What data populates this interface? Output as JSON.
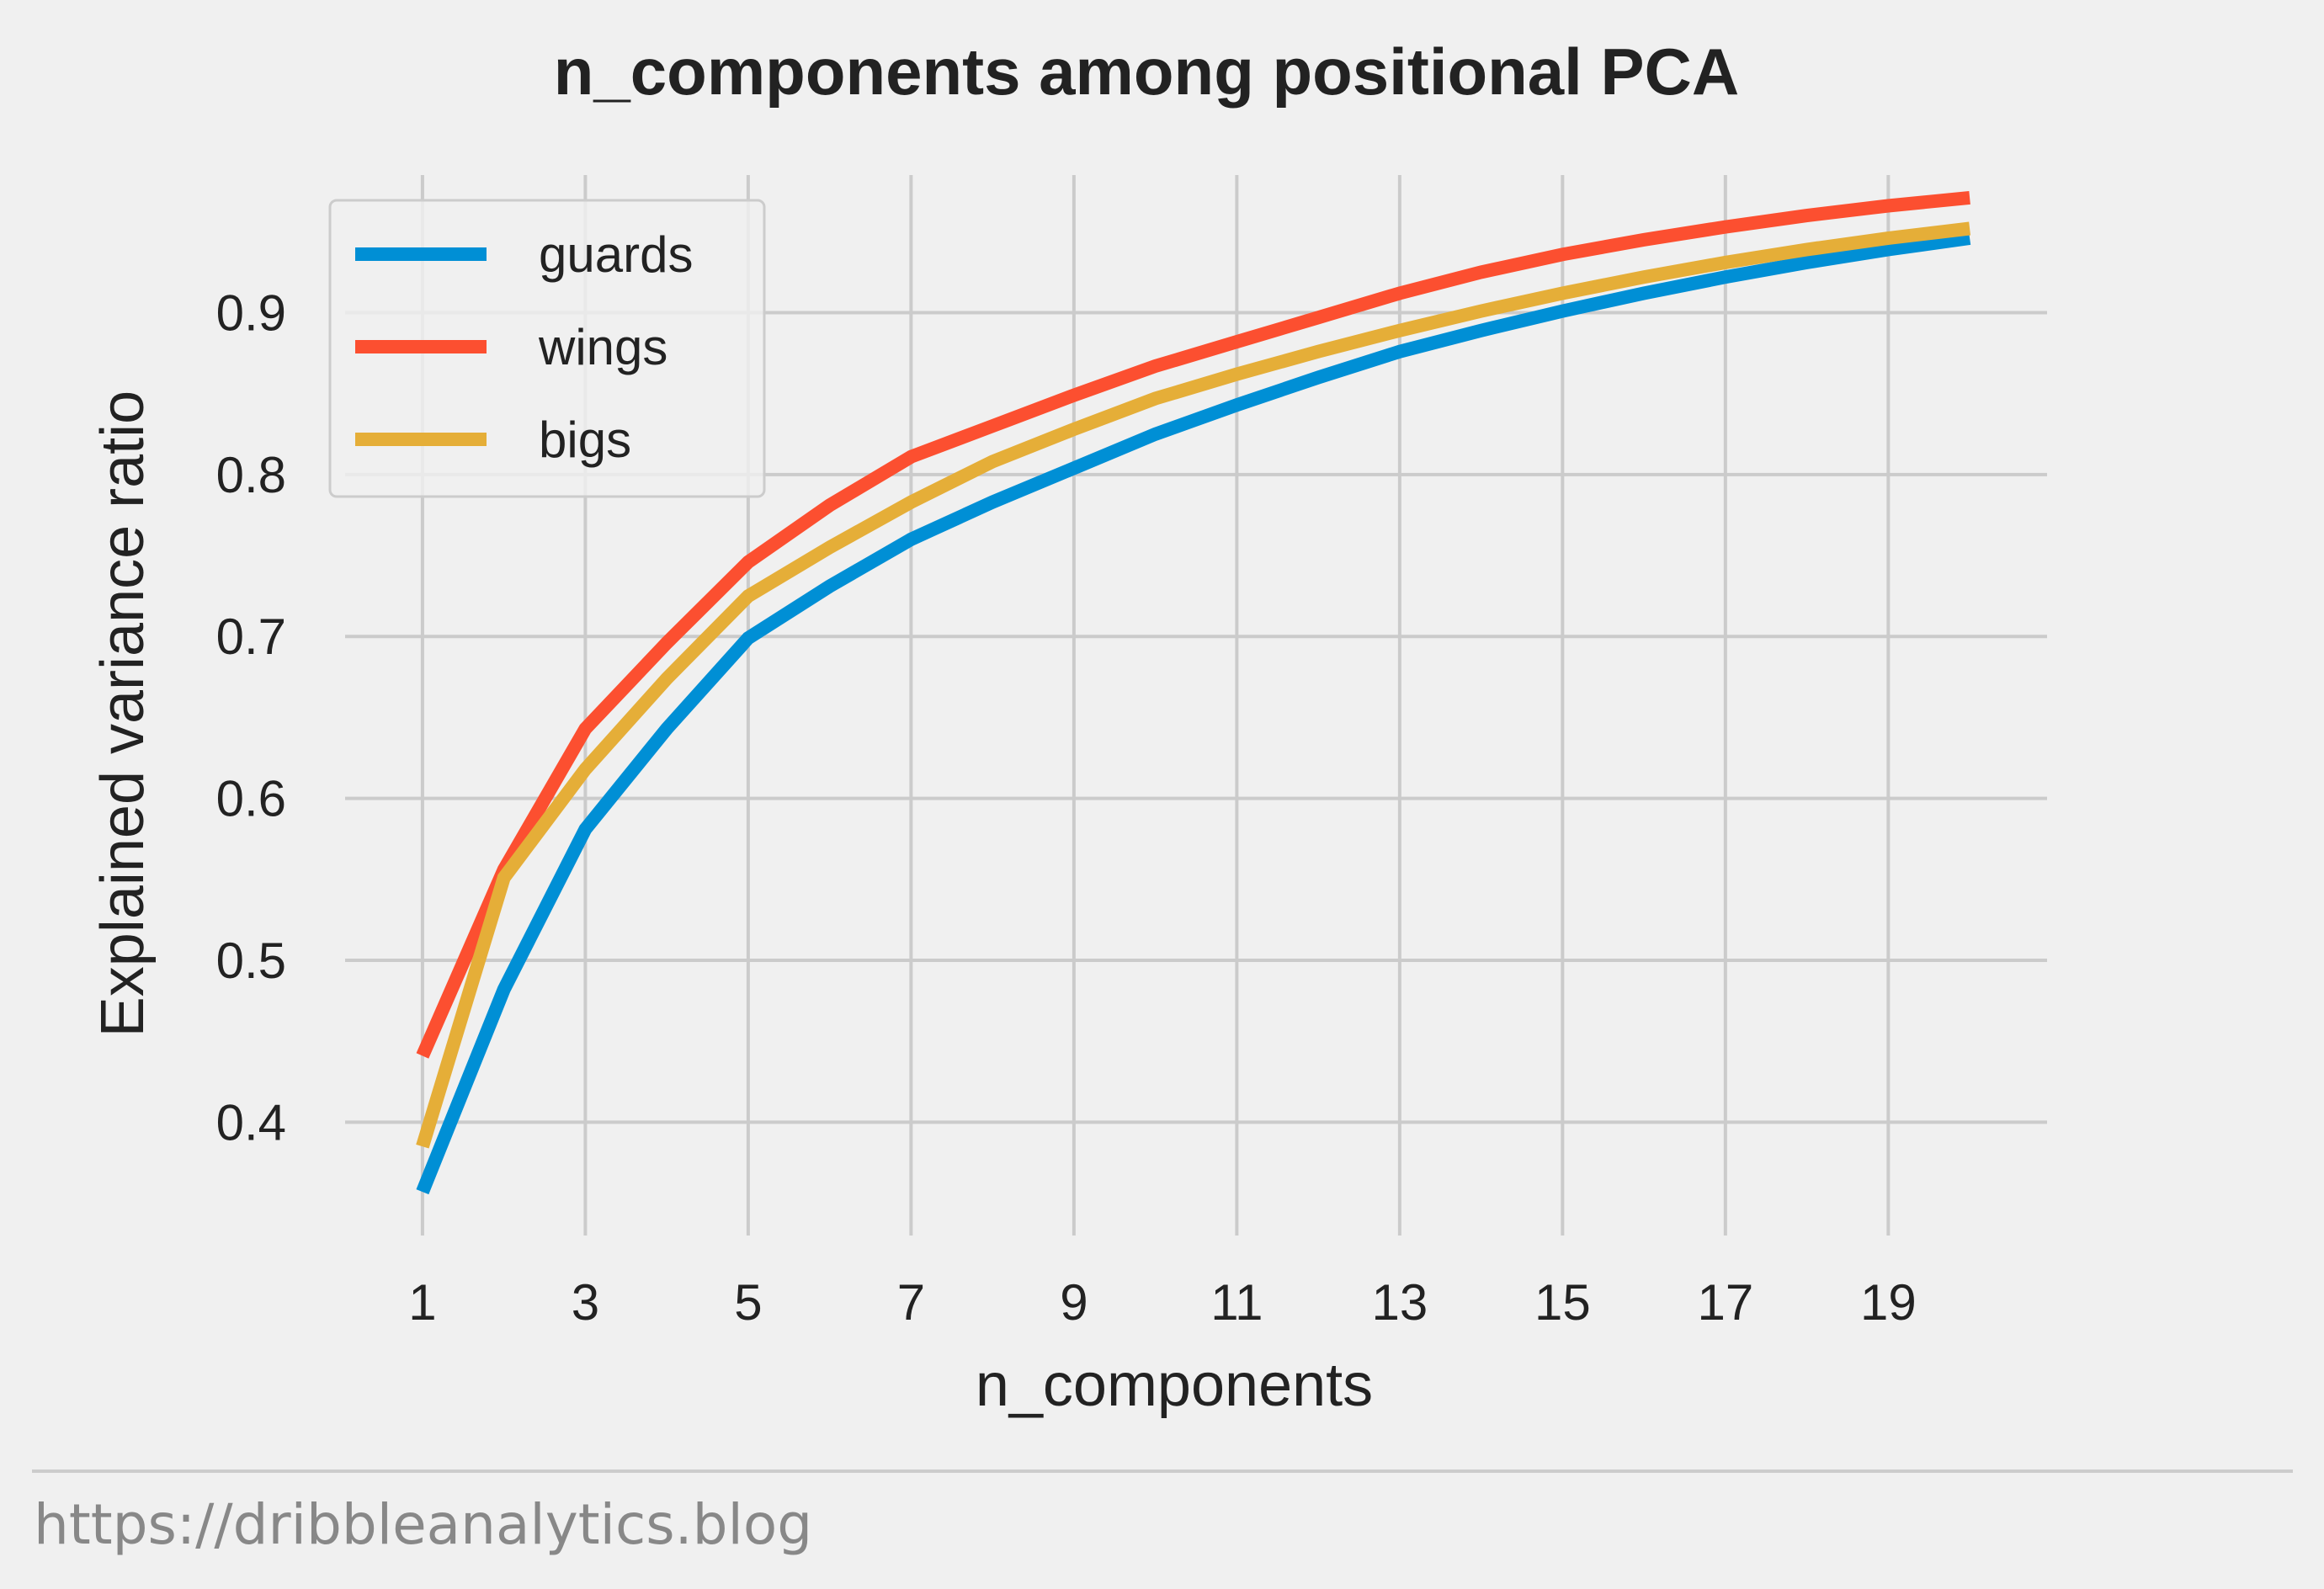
{
  "chart_data": {
    "type": "line",
    "title": "n_components among positional PCA",
    "xlabel": "n_components",
    "ylabel": "Explained variance ratio",
    "x": [
      1,
      2,
      3,
      4,
      5,
      6,
      7,
      8,
      9,
      10,
      11,
      12,
      13,
      14,
      15,
      16,
      17,
      18,
      19,
      20
    ],
    "xticks": [
      1,
      3,
      5,
      7,
      9,
      11,
      13,
      15,
      17,
      19
    ],
    "yticks": [
      0.4,
      0.5,
      0.6,
      0.7,
      0.8,
      0.9
    ],
    "xlim": [
      0.05,
      20.95
    ],
    "ylim": [
      0.33,
      0.985
    ],
    "grid": true,
    "legend_position": "top-left",
    "series": [
      {
        "name": "guards",
        "color": "#008fd5",
        "values": [
          0.357,
          0.482,
          0.581,
          0.643,
          0.699,
          0.731,
          0.76,
          0.783,
          0.804,
          0.825,
          0.843,
          0.86,
          0.876,
          0.889,
          0.901,
          0.912,
          0.922,
          0.931,
          0.939,
          0.946
        ]
      },
      {
        "name": "wings",
        "color": "#fc4f30",
        "values": [
          0.441,
          0.556,
          0.643,
          0.696,
          0.746,
          0.781,
          0.811,
          0.83,
          0.849,
          0.867,
          0.882,
          0.897,
          0.912,
          0.925,
          0.936,
          0.945,
          0.953,
          0.96,
          0.966,
          0.971
        ]
      },
      {
        "name": "bigs",
        "color": "#e5ae38",
        "values": [
          0.385,
          0.551,
          0.618,
          0.674,
          0.725,
          0.755,
          0.783,
          0.808,
          0.828,
          0.847,
          0.862,
          0.876,
          0.889,
          0.901,
          0.912,
          0.922,
          0.931,
          0.939,
          0.946,
          0.952
        ]
      }
    ]
  },
  "footer": {
    "url_text": "https://dribbleanalytics.blog"
  }
}
